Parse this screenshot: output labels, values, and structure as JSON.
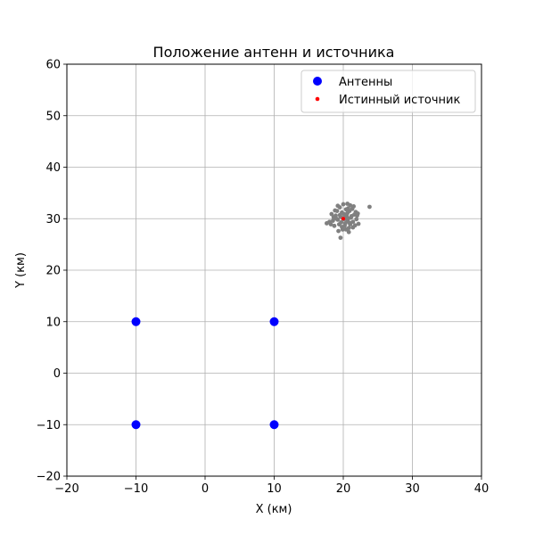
{
  "chart_data": {
    "type": "scatter",
    "title": "Положение антенн и источника",
    "xlabel": "X (км)",
    "ylabel": "Y (км)",
    "xlim": [
      -20,
      40
    ],
    "ylim": [
      -20,
      60
    ],
    "xticks": [
      -20,
      -10,
      0,
      10,
      20,
      30,
      40
    ],
    "yticks": [
      -20,
      -10,
      0,
      10,
      20,
      30,
      40,
      50,
      60
    ],
    "xtick_labels": [
      "−20",
      "−10",
      "0",
      "10",
      "20",
      "30",
      "40"
    ],
    "ytick_labels": [
      "−20",
      "−10",
      "0",
      "10",
      "20",
      "30",
      "40",
      "50",
      "60"
    ],
    "grid": true,
    "legend_position": "top-right",
    "series": [
      {
        "name": "Антенны",
        "color": "#0000ff",
        "marker": "large-dot",
        "points": [
          [
            -10,
            10
          ],
          [
            10,
            10
          ],
          [
            -10,
            -10
          ],
          [
            10,
            -10
          ]
        ]
      },
      {
        "name": "Истинный источник",
        "color": "#ff0000",
        "marker": "small-dot",
        "points": [
          [
            20,
            30
          ]
        ]
      },
      {
        "color": "#808080",
        "marker": "small-dot",
        "points": [
          [
            19.2,
            29.8
          ],
          [
            19.6,
            30.4
          ],
          [
            20.1,
            30.9
          ],
          [
            20.6,
            29.6
          ],
          [
            21.1,
            30.2
          ],
          [
            20.3,
            29.1
          ],
          [
            19.8,
            31.2
          ],
          [
            20.9,
            31.5
          ],
          [
            21.4,
            29.4
          ],
          [
            19.4,
            28.9
          ],
          [
            18.9,
            30.6
          ],
          [
            20.5,
            30.5
          ],
          [
            21.6,
            30.8
          ],
          [
            19.1,
            31.5
          ],
          [
            20.2,
            28.6
          ],
          [
            21.0,
            28.9
          ],
          [
            19.7,
            29.3
          ],
          [
            20.7,
            32.0
          ],
          [
            21.9,
            29.9
          ],
          [
            18.5,
            29.6
          ],
          [
            18.3,
            30.9
          ],
          [
            19.5,
            32.2
          ],
          [
            20.4,
            31.8
          ],
          [
            21.3,
            31.9
          ],
          [
            22.0,
            30.6
          ],
          [
            21.7,
            28.7
          ],
          [
            18.7,
            28.6
          ],
          [
            19.9,
            27.9
          ],
          [
            20.8,
            28.2
          ],
          [
            19.3,
            27.6
          ],
          [
            18.0,
            29.4
          ],
          [
            17.6,
            29.1
          ],
          [
            19.6,
            26.3
          ],
          [
            20.8,
            27.4
          ],
          [
            20.6,
            32.9
          ],
          [
            20.0,
            32.8
          ],
          [
            21.5,
            32.4
          ],
          [
            22.2,
            29.0
          ],
          [
            23.8,
            32.3
          ],
          [
            20.1,
            29.9
          ],
          [
            19.9,
            30.1
          ],
          [
            20.3,
            30.2
          ],
          [
            19.0,
            30.0
          ],
          [
            20.6,
            31.1
          ],
          [
            21.2,
            30.5
          ],
          [
            19.5,
            30.7
          ],
          [
            20.9,
            29.2
          ],
          [
            19.8,
            28.4
          ],
          [
            21.8,
            31.3
          ],
          [
            18.8,
            31.6
          ],
          [
            20.4,
            27.9
          ],
          [
            22.1,
            31.0
          ],
          [
            18.6,
            30.3
          ],
          [
            21.4,
            28.3
          ],
          [
            19.2,
            32.5
          ],
          [
            20.7,
            30.0
          ],
          [
            21.0,
            32.6
          ],
          [
            18.2,
            28.9
          ]
        ]
      }
    ]
  }
}
